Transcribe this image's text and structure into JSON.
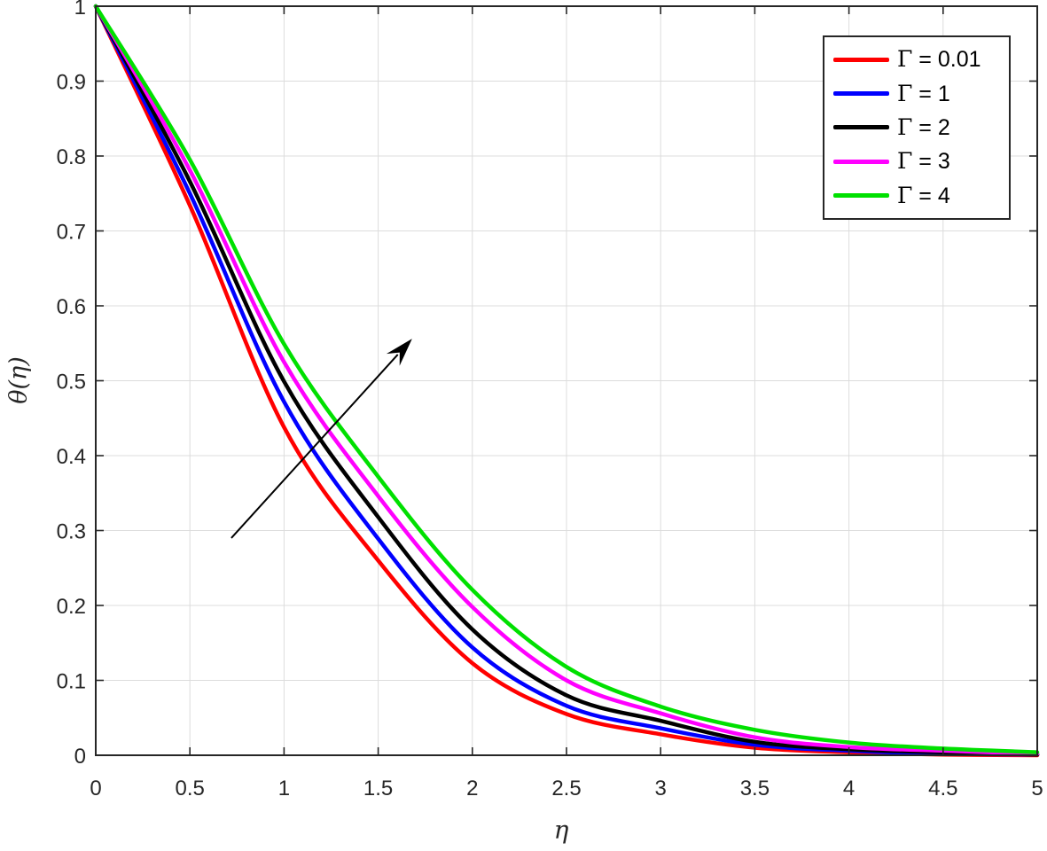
{
  "figure": {
    "background": "#ffffff",
    "frame_color": "#262626",
    "grid_color": "#dcdcdc",
    "tick_label_color": "#262626"
  },
  "chart_data": {
    "type": "line",
    "title": "",
    "xlabel": "η",
    "ylabel": "θ(η)",
    "xlim": [
      0,
      5
    ],
    "ylim": [
      0,
      1
    ],
    "grid": true,
    "legend_position": "top-right",
    "xticks": {
      "values": [
        0,
        0.5,
        1,
        1.5,
        2,
        2.5,
        3,
        3.5,
        4,
        4.5,
        5
      ],
      "labels": [
        "0",
        "0.5",
        "1",
        "1.5",
        "2",
        "2.5",
        "3",
        "3.5",
        "4",
        "4.5",
        "5"
      ]
    },
    "yticks": {
      "values": [
        0,
        0.1,
        0.2,
        0.3,
        0.4,
        0.5,
        0.6,
        0.7,
        0.8,
        0.9,
        1
      ],
      "labels": [
        "0",
        "0.1",
        "0.2",
        "0.3",
        "0.4",
        "0.5",
        "0.6",
        "0.7",
        "0.8",
        "0.9",
        "1"
      ]
    },
    "x": [
      0,
      0.5,
      1,
      1.5,
      2,
      2.5,
      3,
      3.5,
      4,
      4.5,
      5
    ],
    "series": [
      {
        "name": "Γ = 0.01",
        "color": "#ff0000",
        "values": [
          1,
          0.734,
          0.438,
          0.26,
          0.123,
          0.055,
          0.028,
          0.01,
          0.004,
          0.001,
          0.0
        ]
      },
      {
        "name": "Γ = 1",
        "color": "#0000ff",
        "values": [
          1,
          0.75,
          0.472,
          0.289,
          0.144,
          0.066,
          0.036,
          0.014,
          0.006,
          0.002,
          0.001
        ]
      },
      {
        "name": "Γ = 2",
        "color": "#000000",
        "values": [
          1,
          0.766,
          0.499,
          0.318,
          0.168,
          0.08,
          0.046,
          0.018,
          0.008,
          0.004,
          0.001
        ]
      },
      {
        "name": "Γ = 3",
        "color": "#ff00ff",
        "values": [
          1,
          0.781,
          0.525,
          0.346,
          0.198,
          0.1,
          0.056,
          0.024,
          0.011,
          0.006,
          0.002
        ]
      },
      {
        "name": "Γ = 4",
        "color": "#00e000",
        "values": [
          1,
          0.795,
          0.549,
          0.372,
          0.221,
          0.118,
          0.065,
          0.034,
          0.017,
          0.009,
          0.004
        ]
      }
    ],
    "annotation_arrow": {
      "x_from": 0.72,
      "y_from": 0.29,
      "x_to": 1.68,
      "y_to": 0.556,
      "color": "#000000"
    }
  }
}
